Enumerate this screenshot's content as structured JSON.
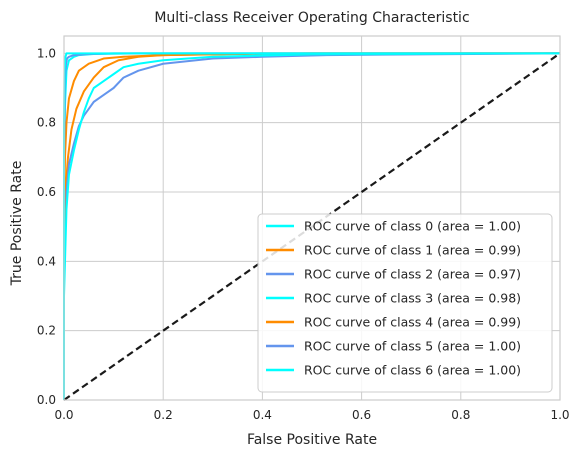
{
  "chart_data": {
    "type": "line",
    "title": "Multi-class Receiver Operating Characteristic",
    "xlabel": "False Positive Rate",
    "ylabel": "True Positive Rate",
    "xlim": [
      0.0,
      1.0
    ],
    "ylim": [
      0.0,
      1.05
    ],
    "xticks": [
      "0.0",
      "0.2",
      "0.4",
      "0.6",
      "0.8",
      "1.0"
    ],
    "yticks": [
      "0.0",
      "0.2",
      "0.4",
      "0.6",
      "0.8",
      "1.0"
    ],
    "grid": true,
    "legend_position": "lower-right",
    "series": [
      {
        "name": "ROC curve of class 0 (area = 1.00)",
        "color": "#00ffff",
        "x": [
          0.0,
          0.0,
          0.002,
          0.005,
          0.01,
          0.02,
          0.03,
          0.06,
          0.15,
          0.4,
          0.7,
          1.0
        ],
        "y": [
          0.0,
          0.6,
          0.85,
          0.95,
          0.98,
          0.99,
          0.995,
          0.998,
          1.0,
          1.0,
          1.0,
          1.0
        ]
      },
      {
        "name": "ROC curve of class 1 (area = 0.99)",
        "color": "#ff8c00",
        "x": [
          0.0,
          0.0,
          0.003,
          0.008,
          0.015,
          0.025,
          0.04,
          0.06,
          0.08,
          0.11,
          0.15,
          0.2,
          0.3,
          0.5,
          1.0
        ],
        "y": [
          0.0,
          0.45,
          0.6,
          0.7,
          0.78,
          0.84,
          0.89,
          0.93,
          0.96,
          0.98,
          0.99,
          0.995,
          0.997,
          1.0,
          1.0
        ]
      },
      {
        "name": "ROC curve of class 2 (area = 0.97)",
        "color": "#6495ed",
        "x": [
          0.0,
          0.0,
          0.005,
          0.01,
          0.02,
          0.03,
          0.04,
          0.05,
          0.06,
          0.08,
          0.1,
          0.12,
          0.15,
          0.2,
          0.3,
          0.4,
          0.53,
          1.0
        ],
        "y": [
          0.0,
          0.45,
          0.6,
          0.68,
          0.74,
          0.79,
          0.82,
          0.84,
          0.86,
          0.88,
          0.9,
          0.93,
          0.95,
          0.97,
          0.985,
          0.99,
          0.995,
          1.0
        ]
      },
      {
        "name": "ROC curve of class 3 (area = 0.98)",
        "color": "#00ffff",
        "x": [
          0.0,
          0.0,
          0.005,
          0.01,
          0.02,
          0.03,
          0.04,
          0.05,
          0.06,
          0.08,
          0.1,
          0.12,
          0.15,
          0.2,
          0.3,
          0.5,
          1.0
        ],
        "y": [
          0.0,
          0.3,
          0.55,
          0.65,
          0.72,
          0.78,
          0.83,
          0.87,
          0.9,
          0.92,
          0.94,
          0.96,
          0.97,
          0.98,
          0.99,
          0.997,
          1.0
        ]
      },
      {
        "name": "ROC curve of class 4 (area = 0.99)",
        "color": "#ff8c00",
        "x": [
          0.0,
          0.0,
          0.002,
          0.005,
          0.01,
          0.02,
          0.03,
          0.05,
          0.08,
          0.12,
          0.2,
          0.4,
          1.0
        ],
        "y": [
          0.0,
          0.5,
          0.7,
          0.8,
          0.87,
          0.92,
          0.95,
          0.97,
          0.985,
          0.99,
          0.995,
          1.0,
          1.0
        ]
      },
      {
        "name": "ROC curve of class 5 (area = 1.00)",
        "color": "#6495ed",
        "x": [
          0.0,
          0.0,
          0.002,
          0.004,
          0.006,
          0.01,
          0.02,
          0.05,
          0.1,
          0.3,
          0.69,
          1.0
        ],
        "y": [
          0.0,
          0.7,
          0.93,
          0.97,
          0.985,
          0.99,
          0.995,
          0.998,
          1.0,
          1.0,
          1.0,
          1.0
        ]
      },
      {
        "name": "ROC curve of class 6 (area = 1.00)",
        "color": "#00ffff",
        "x": [
          0.0,
          0.0,
          0.001,
          0.003,
          0.005,
          0.01,
          0.02,
          0.05,
          0.1,
          0.3,
          1.0
        ],
        "y": [
          0.0,
          0.8,
          0.95,
          0.99,
          1.0,
          1.0,
          1.0,
          1.0,
          1.0,
          1.0,
          1.0
        ]
      }
    ],
    "reference_line": {
      "x": [
        0.0,
        1.0
      ],
      "y": [
        0.0,
        1.0
      ],
      "color": "#1a1a1a",
      "style": "dashed"
    }
  }
}
